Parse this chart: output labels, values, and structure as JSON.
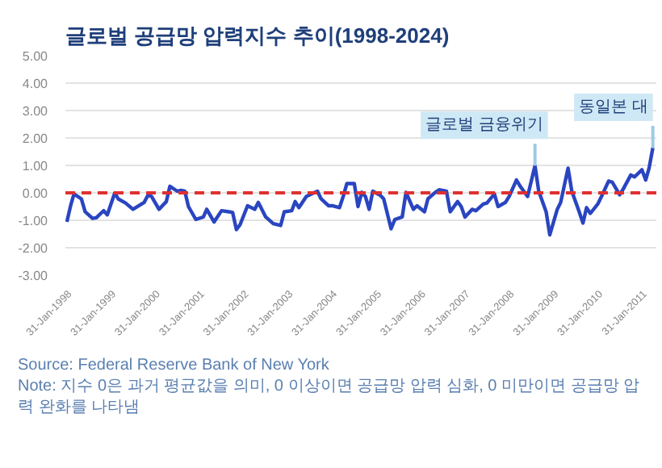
{
  "chart_data": {
    "type": "line",
    "title": "글로벌 공급망 압력지수 추이(1998-2024)",
    "x": [
      "1998-01",
      "1998-02",
      "1998-03",
      "1998-05",
      "1998-06",
      "1998-08",
      "1998-09",
      "1998-10",
      "1998-11",
      "1998-12",
      "1999-02",
      "1999-03",
      "1999-05",
      "1999-07",
      "1999-10",
      "1999-11",
      "1999-12",
      "2000-02",
      "2000-04",
      "2000-05",
      "2000-07",
      "2000-08",
      "2000-09",
      "2000-10",
      "2000-12",
      "2001-02",
      "2001-03",
      "2001-05",
      "2001-07",
      "2001-09",
      "2001-10",
      "2001-11",
      "2001-12",
      "2002-02",
      "2002-04",
      "2002-05",
      "2002-07",
      "2002-09",
      "2002-11",
      "2002-12",
      "2003-02",
      "2003-03",
      "2003-04",
      "2003-06",
      "2003-08",
      "2003-09",
      "2003-10",
      "2003-12",
      "2004-01",
      "2004-03",
      "2004-04",
      "2004-05",
      "2004-07",
      "2004-08",
      "2004-09",
      "2004-10",
      "2004-11",
      "2004-12",
      "2005-02",
      "2005-03",
      "2005-05",
      "2005-06",
      "2005-08",
      "2005-09",
      "2005-11",
      "2005-12",
      "2006-02",
      "2006-03",
      "2006-05",
      "2006-06",
      "2006-08",
      "2006-09",
      "2006-11",
      "2006-12",
      "2007-01",
      "2007-03",
      "2007-04",
      "2007-06",
      "2007-07",
      "2007-09",
      "2007-10",
      "2007-12",
      "2008-01",
      "2008-03",
      "2008-04",
      "2008-06",
      "2008-08",
      "2008-09",
      "2008-11",
      "2008-12",
      "2009-02",
      "2009-03",
      "2009-05",
      "2009-06",
      "2009-08",
      "2009-09",
      "2009-10",
      "2009-11",
      "2010-01",
      "2010-02",
      "2010-04",
      "2010-05",
      "2010-07",
      "2010-08",
      "2010-10",
      "2010-11",
      "2011-01",
      "2011-02",
      "2011-03",
      "2011-04"
    ],
    "series": [
      {
        "color": "#2a45c0",
        "values": [
          -1.06,
          -0.47,
          -0.04,
          -0.22,
          -0.69,
          -0.93,
          -0.91,
          -0.78,
          -0.65,
          -0.8,
          0.0,
          -0.22,
          -0.37,
          -0.6,
          -0.35,
          -0.09,
          -0.13,
          -0.6,
          -0.32,
          0.24,
          0.06,
          0.09,
          0.06,
          -0.5,
          -0.97,
          -0.88,
          -0.6,
          -1.06,
          -0.65,
          -0.69,
          -0.72,
          -1.34,
          -1.16,
          -0.47,
          -0.6,
          -0.35,
          -0.88,
          -1.12,
          -1.19,
          -0.69,
          -0.65,
          -0.32,
          -0.54,
          -0.13,
          0.0,
          0.06,
          -0.22,
          -0.47,
          -0.47,
          -0.54,
          -0.13,
          0.34,
          0.34,
          -0.5,
          0.02,
          -0.13,
          -0.6,
          0.06,
          -0.09,
          -0.22,
          -1.31,
          -0.97,
          -0.88,
          0.02,
          -0.6,
          -0.47,
          -0.69,
          -0.22,
          0.02,
          0.11,
          0.06,
          -0.69,
          -0.32,
          -0.5,
          -0.88,
          -0.6,
          -0.65,
          -0.41,
          -0.37,
          -0.04,
          -0.5,
          -0.35,
          -0.13,
          0.47,
          0.24,
          -0.13,
          0.99,
          0.06,
          -0.69,
          -1.53,
          -0.6,
          -0.35,
          0.9,
          0.06,
          -0.69,
          -1.1,
          -0.54,
          -0.75,
          -0.41,
          -0.13,
          0.43,
          0.39,
          -0.07,
          0.15,
          0.65,
          0.58,
          0.84,
          0.47,
          0.9,
          1.64
        ]
      }
    ],
    "xlim": [
      "1997-12-20",
      "2011-04-30"
    ],
    "xticks": [
      {
        "value": "1998-01-31",
        "label": "31-Jan-1998"
      },
      {
        "value": "1999-01-31",
        "label": "31-Jan-1999"
      },
      {
        "value": "2000-01-31",
        "label": "31-Jan-2000"
      },
      {
        "value": "2001-01-31",
        "label": "31-Jan-2001"
      },
      {
        "value": "2002-01-31",
        "label": "31-Jan-2002"
      },
      {
        "value": "2003-01-31",
        "label": "31-Jan-2003"
      },
      {
        "value": "2004-01-31",
        "label": "31-Jan-2004"
      },
      {
        "value": "2005-01-31",
        "label": "31-Jan-2005"
      },
      {
        "value": "2006-01-31",
        "label": "31-Jan-2006"
      },
      {
        "value": "2007-01-31",
        "label": "31-Jan-2007"
      },
      {
        "value": "2008-01-31",
        "label": "31-Jan-2008"
      },
      {
        "value": "2009-01-31",
        "label": "31-Jan-2009"
      },
      {
        "value": "2010-01-31",
        "label": "31-Jan-2010"
      },
      {
        "value": "2011-01-31",
        "label": "31-Jan-2011"
      }
    ],
    "ylim": [
      -3,
      5
    ],
    "yticks": [
      {
        "value": -3,
        "label": "-3.00"
      },
      {
        "value": -2,
        "label": "-2.00"
      },
      {
        "value": -1,
        "label": "-1.00"
      },
      {
        "value": 0,
        "label": "0.00"
      },
      {
        "value": 1,
        "label": "1.00"
      },
      {
        "value": 2,
        "label": "2.00"
      },
      {
        "value": 3,
        "label": "3.00"
      },
      {
        "value": 4,
        "label": "4.00"
      },
      {
        "value": 5,
        "label": "5.00"
      }
    ],
    "grid": "y",
    "marker": "none",
    "line_style": "solid",
    "ref_lines": [
      {
        "axis": "y",
        "value": 0,
        "color": "#e03030",
        "line_style": "dashed"
      }
    ],
    "annotations": [
      {
        "text": "글로벌 금융위기",
        "x": "2008-08",
        "y": 0.99
      },
      {
        "text": "동일본 대",
        "x": "2011-04",
        "y": 1.64
      },
      "Source: Federal Reserve Bank of New York",
      "Note: 지수 0은 과거 평균값을 의미, 0 이상이면 공급망 압력 심화, 0 미만이면 공급망 압력 완화를 나타냄"
    ]
  }
}
